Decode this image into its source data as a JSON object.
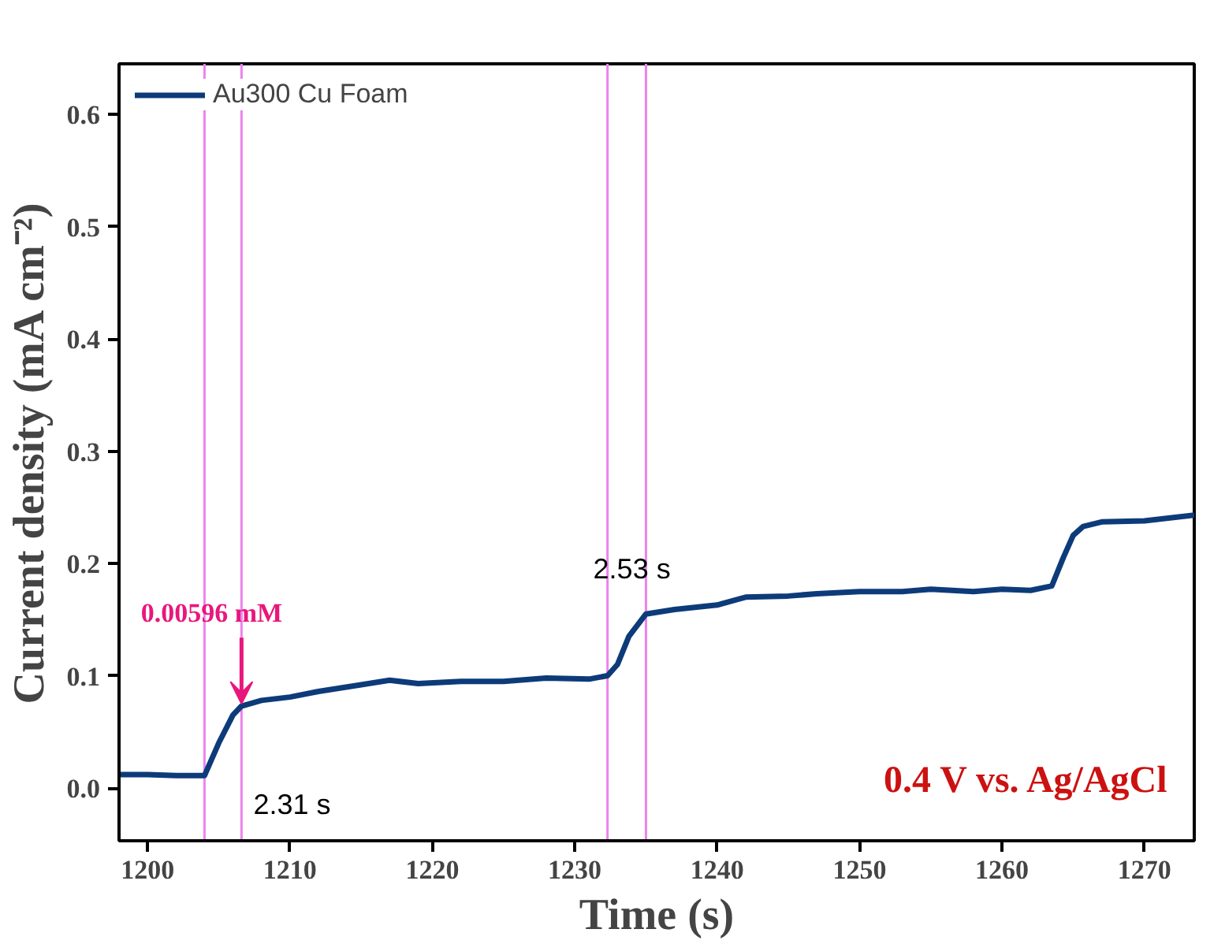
{
  "chart_data": {
    "type": "line",
    "xlabel": "Time (s)",
    "ylabel": "Current density (mA cm⁻²)",
    "series": [
      {
        "name": "Au300 Cu Foam",
        "color": "#0d3b7a",
        "x": [
          1198,
          1200,
          1202,
          1204,
          1205,
          1206,
          1206.6,
          1208,
          1210,
          1212,
          1215,
          1217,
          1219,
          1222,
          1225,
          1228,
          1231,
          1232.3,
          1233,
          1233.8,
          1235,
          1237,
          1240,
          1242,
          1245,
          1247,
          1250,
          1253,
          1255,
          1258,
          1260,
          1262,
          1263.5,
          1264.3,
          1265,
          1265.7,
          1267,
          1270,
          1273.5
        ],
        "values": [
          0.012,
          0.012,
          0.011,
          0.011,
          0.04,
          0.065,
          0.073,
          0.078,
          0.081,
          0.086,
          0.092,
          0.096,
          0.093,
          0.095,
          0.095,
          0.098,
          0.097,
          0.1,
          0.11,
          0.135,
          0.155,
          0.159,
          0.163,
          0.17,
          0.171,
          0.173,
          0.175,
          0.175,
          0.177,
          0.175,
          0.177,
          0.176,
          0.18,
          0.205,
          0.225,
          0.233,
          0.237,
          0.238,
          0.243
        ]
      }
    ],
    "xlim": [
      1198,
      1273.5
    ],
    "ylim": [
      -0.047,
      0.645
    ],
    "xticks": [
      1200,
      1210,
      1220,
      1230,
      1240,
      1250,
      1260,
      1270
    ],
    "yticks": [
      {
        "value": 0,
        "label": "0.0"
      },
      {
        "value": 0.1,
        "label": "0.1"
      },
      {
        "value": 0.2,
        "label": "0.2"
      },
      {
        "value": 0.3,
        "label": "0.3"
      },
      {
        "value": 0.4,
        "label": "0.4"
      },
      {
        "value": 0.5,
        "label": "0.5"
      },
      {
        "value": 0.6,
        "label": "0.6"
      }
    ],
    "ref_lines": [
      {
        "axis": "x",
        "value": 1204,
        "color": "#ee82ee"
      },
      {
        "axis": "x",
        "value": 1206.6,
        "color": "#ee82ee"
      },
      {
        "axis": "x",
        "value": 1232.3,
        "color": "#ee82ee"
      },
      {
        "axis": "x",
        "value": 1235,
        "color": "#ee82ee"
      }
    ],
    "annotations": [
      {
        "text": "0.00596 mM",
        "x": 1206.6,
        "y": 0.075
      },
      "2.31 s",
      "2.53 s",
      "0.4 V vs. Ag/AgCl"
    ],
    "grid": false,
    "legend": "top left",
    "line_style": "solid",
    "marker": "none"
  }
}
